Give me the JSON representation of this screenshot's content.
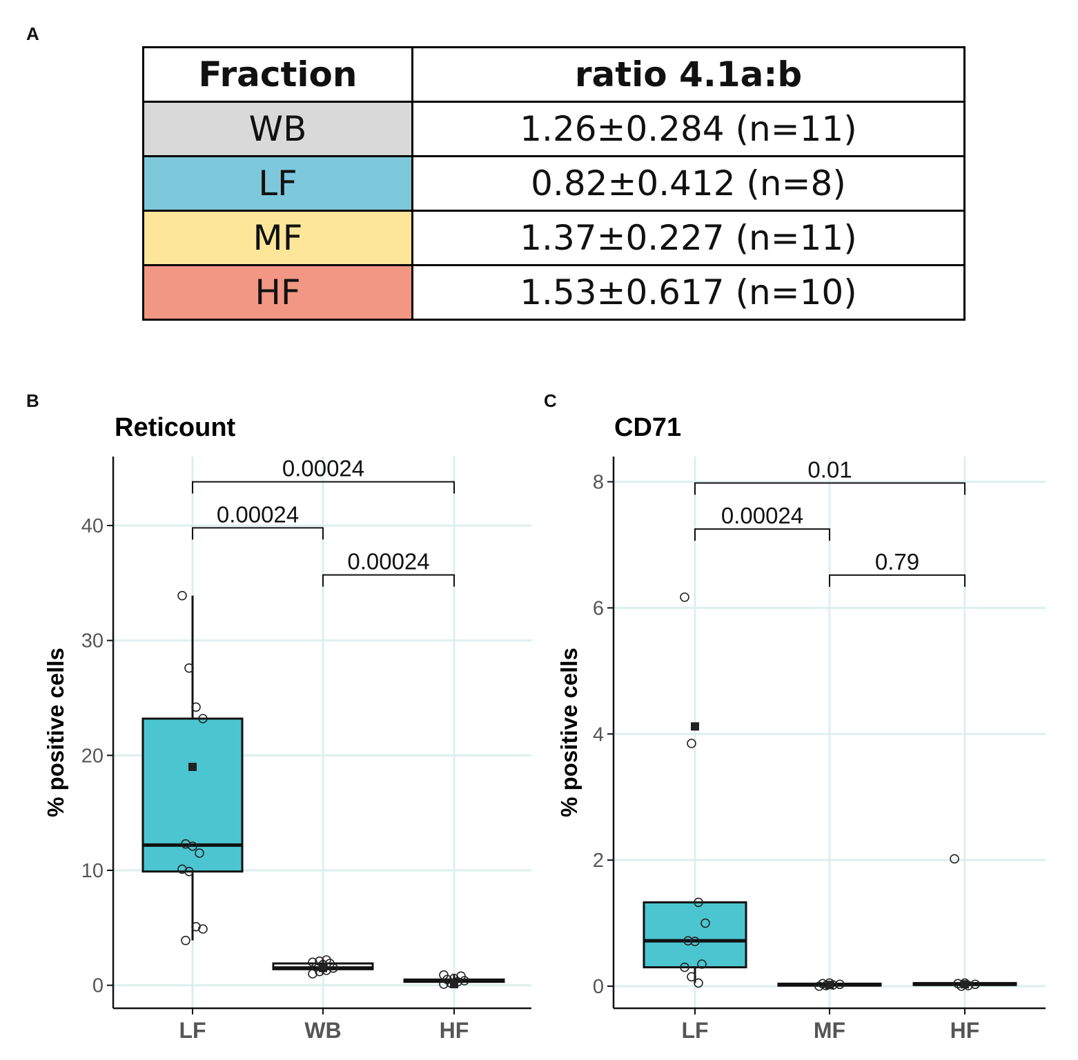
{
  "panels": {
    "a": "A",
    "b": "B",
    "c": "C"
  },
  "table": {
    "headers": [
      "Fraction",
      "ratio 4.1a:b"
    ],
    "rows": [
      {
        "fraction": "WB",
        "ratio": "1.26±0.284 (n=11)",
        "color": "#d9d9d9"
      },
      {
        "fraction": "LF",
        "ratio": "0.82±0.412 (n=8)",
        "color": "#7ec8dc"
      },
      {
        "fraction": "MF",
        "ratio": "1.37±0.227 (n=11)",
        "color": "#fde59a"
      },
      {
        "fraction": "HF",
        "ratio": "1.53±0.617 (n=10)",
        "color": "#f29784"
      }
    ]
  },
  "chart_data": [
    {
      "type": "box",
      "title": "Reticount",
      "ylabel": "% positive cells",
      "categories": [
        "LF",
        "WB",
        "HF"
      ],
      "yticks": [
        0,
        10,
        20,
        30,
        40
      ],
      "ylim": [
        -2,
        46
      ],
      "fill": "#4bc6d0",
      "boxes": [
        {
          "category": "LF",
          "q1": 9.9,
          "median": 12.2,
          "q3": 23.2,
          "whisker_low": 3.9,
          "whisker_high": 33.9,
          "mean": 19.0,
          "filled": true
        },
        {
          "category": "WB",
          "q1": 1.4,
          "median": 1.5,
          "q3": 1.9,
          "whisker_low": 1.0,
          "whisker_high": 2.2,
          "mean": 1.5,
          "filled": false
        },
        {
          "category": "HF",
          "q1": 0.3,
          "median": 0.4,
          "q3": 0.5,
          "whisker_low": 0.1,
          "whisker_high": 0.9,
          "mean": 0.1,
          "filled": false
        }
      ],
      "points": [
        {
          "category": "LF",
          "values": [
            33.9,
            27.6,
            24.2,
            23.2,
            12.3,
            12.1,
            11.5,
            10.1,
            9.9,
            5.1,
            4.9,
            3.9
          ]
        },
        {
          "category": "WB",
          "values": [
            1.0,
            1.2,
            1.3,
            1.5,
            1.6,
            1.8,
            1.9,
            2.0,
            2.1,
            2.2
          ]
        },
        {
          "category": "HF",
          "values": [
            0.1,
            0.2,
            0.3,
            0.4,
            0.5,
            0.6,
            0.8,
            0.9
          ]
        }
      ],
      "comparisons": [
        {
          "from": "LF",
          "to": "HF",
          "label": "0.00024",
          "y": 43.8
        },
        {
          "from": "LF",
          "to": "WB",
          "label": "0.00024",
          "y": 39.8
        },
        {
          "from": "WB",
          "to": "HF",
          "label": "0.00024",
          "y": 35.7
        }
      ]
    },
    {
      "type": "box",
      "title": "CD71",
      "ylabel": "% positive cells",
      "categories": [
        "LF",
        "MF",
        "HF"
      ],
      "yticks": [
        0,
        2,
        4,
        6,
        8
      ],
      "ylim": [
        -0.35,
        8.4
      ],
      "fill": "#4bc6d0",
      "boxes": [
        {
          "category": "LF",
          "q1": 0.3,
          "median": 0.72,
          "q3": 1.33,
          "whisker_low": 0.05,
          "whisker_high": 1.33,
          "mean": 4.12,
          "filled": true
        },
        {
          "category": "MF",
          "q1": 0.01,
          "median": 0.02,
          "q3": 0.04,
          "whisker_low": 0.0,
          "whisker_high": 0.05,
          "mean": 0.02,
          "filled": false
        },
        {
          "category": "HF",
          "q1": 0.02,
          "median": 0.03,
          "q3": 0.05,
          "whisker_low": 0.0,
          "whisker_high": 0.06,
          "mean": 0.03,
          "filled": false
        }
      ],
      "points": [
        {
          "category": "LF",
          "values": [
            6.17,
            3.85,
            1.33,
            1.0,
            0.72,
            0.71,
            0.35,
            0.3,
            0.15,
            0.05
          ]
        },
        {
          "category": "MF",
          "values": [
            0.0,
            0.01,
            0.02,
            0.03,
            0.04,
            0.05
          ]
        },
        {
          "category": "HF",
          "values": [
            2.02,
            0.0,
            0.01,
            0.03,
            0.04,
            0.05
          ]
        }
      ],
      "comparisons": [
        {
          "from": "LF",
          "to": "HF",
          "label": "0.01",
          "y": 7.98
        },
        {
          "from": "LF",
          "to": "MF",
          "label": "0.00024",
          "y": 7.25
        },
        {
          "from": "MF",
          "to": "HF",
          "label": "0.79",
          "y": 6.52
        }
      ]
    }
  ]
}
